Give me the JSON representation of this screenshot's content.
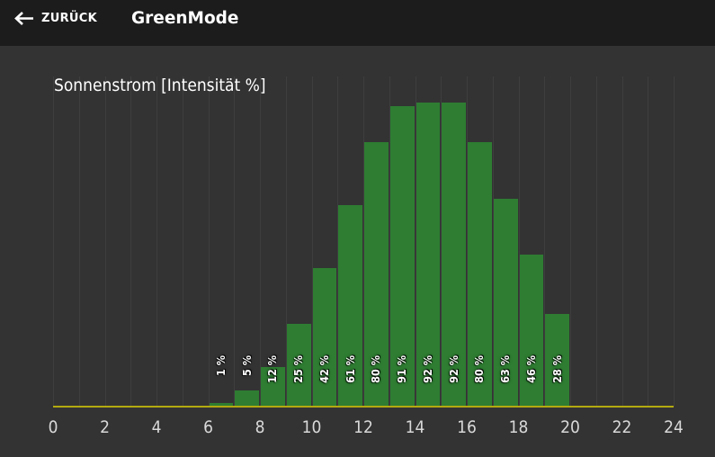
{
  "header": {
    "back_label": "ZURÜCK",
    "title": "GreenMode"
  },
  "chart_data": {
    "type": "bar",
    "title": "Sonnenstrom [Intensität %]",
    "xlabel": "",
    "ylabel": "Intensität %",
    "xlim": [
      0,
      24
    ],
    "ylim": [
      0,
      100
    ],
    "x_ticks": [
      0,
      2,
      4,
      6,
      8,
      10,
      12,
      14,
      16,
      18,
      20,
      22,
      24
    ],
    "x_start_hours": [
      6,
      7,
      8,
      9,
      10,
      11,
      12,
      13,
      14,
      15,
      16,
      17,
      18,
      19
    ],
    "values": [
      1,
      5,
      12,
      25,
      42,
      61,
      80,
      91,
      92,
      92,
      80,
      63,
      46,
      28
    ],
    "bar_labels": [
      "1 %",
      "5 %",
      "12 %",
      "25 %",
      "42 %",
      "61 %",
      "80 %",
      "91 %",
      "92 %",
      "92 %",
      "80 %",
      "63 %",
      "46 %",
      "28 %"
    ],
    "grid": "vertical gridlines every 1 hour",
    "legend": "none",
    "colors": {
      "bar": "#2e7d32",
      "baseline": "#b3aa10",
      "gridline": "#3e3e3e",
      "background": "#333333",
      "header_background": "#1c1c1c",
      "text": "#ffffff",
      "tick_text": "#d9d9d9"
    }
  }
}
